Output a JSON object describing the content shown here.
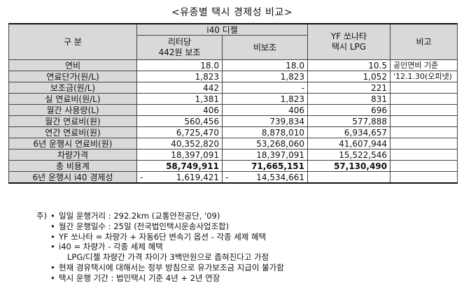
{
  "title": "<유종별 택시 경제성 비교>",
  "header": {
    "category": "구  분",
    "i40_group": "i40 디젤",
    "i40_subsidy_line1": "리터당",
    "i40_subsidy_line2": "442원 보조",
    "i40_nosubsidy": "비보조",
    "yf_line1": "YF 쏘나타",
    "yf_line2": "택시 LPG",
    "remarks": "비고"
  },
  "rows": [
    {
      "label": "연비",
      "a": "18.0",
      "b": "18.0",
      "c": "10.5",
      "note": "공인연비 기준"
    },
    {
      "label": "연료단가(원/L)",
      "a": "1,823",
      "b": "1,823",
      "c": "1,052",
      "note": "'12.1.30(오피넷)"
    },
    {
      "label": "보조금(원/L)",
      "a": "442",
      "b": "-",
      "c": "221",
      "note": ""
    },
    {
      "label": "실 연료비(원/L)",
      "a": "1,381",
      "b": "1,823",
      "c": "831",
      "note": ""
    },
    {
      "label": "월간 사용량(L)",
      "a": "406",
      "b": "406",
      "c": "696",
      "note": ""
    },
    {
      "label": "월간 연료비(원)",
      "a": "560,456",
      "b": "739,834",
      "c": "577,888",
      "note": ""
    },
    {
      "label": "연간 연료비(원)",
      "a": "6,725,470",
      "b": "8,878,010",
      "c": "6,934,657",
      "note": ""
    },
    {
      "label": "6년 운행시 연료비(원)",
      "a": "40,352,820",
      "b": "53,268,060",
      "c": "41,607,944",
      "note": ""
    },
    {
      "label": "차량가격",
      "a": "18,397,091",
      "b": "18,397,091",
      "c": "15,522,546",
      "note": ""
    },
    {
      "label": "총 비용계",
      "a": "58,749,911",
      "b": "71,665,151",
      "c": "57,130,490",
      "note": ""
    }
  ],
  "economy_row": {
    "label": "6년 운행시 i40 경제성",
    "a_sign": "-",
    "a": "1,619,421",
    "b_sign": "-",
    "b": "14,534,661",
    "c": "",
    "note": ""
  },
  "notes": {
    "prefix": "주)",
    "bullet": "•",
    "items": [
      "일일 운행거리 : 292.2km (교통안전공단, '09)",
      "월간 운행일수 : 25일 (전국법인택시운송사업조합)",
      "YF 쏘나타 = 차량가 + 자동6단 변속기 옵션 - 각종 세제 혜택",
      "i40 = 차량가 - 각종 세제 혜택",
      "현재 경유택시에 대해서는 정부 방침으로 유가보조금 지급이 불가함",
      "택시 운행 기간 : 법인택시 기준 4년 + 2년 연장"
    ],
    "sub_item": "LPG/디젤 차량간 가격 차이가 3백만원으로 좁혀진다고 가정"
  }
}
